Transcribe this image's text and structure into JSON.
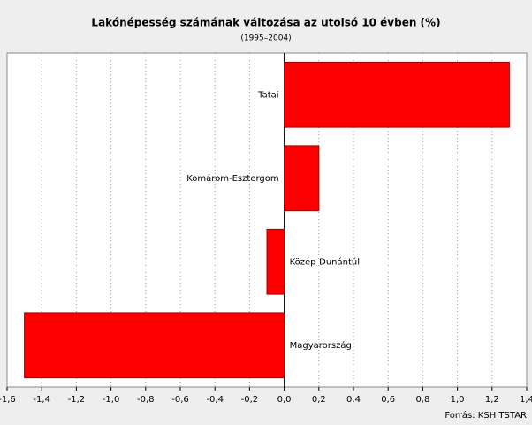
{
  "chart_data": {
    "type": "barh",
    "title": "Lakónépesség számának változása az utolsó 10 évben (%)",
    "subtitle": "(1995–2004)",
    "source": "Forrás: KSH TSTAR",
    "categories": [
      "Tatai",
      "Komárom-Esztergom",
      "Közép-Dunántúl",
      "Magyarország"
    ],
    "values": [
      1.3,
      0.2,
      -0.1,
      -1.5
    ],
    "color": "#ff0000",
    "xlim": [
      -1.6,
      1.4
    ],
    "xticks": [
      {
        "value": -1.6,
        "label": "-1,6"
      },
      {
        "value": -1.4,
        "label": "-1,4"
      },
      {
        "value": -1.2,
        "label": "-1,2"
      },
      {
        "value": -1.0,
        "label": "-1,0"
      },
      {
        "value": -0.8,
        "label": "-0,8"
      },
      {
        "value": -0.6,
        "label": "-0,6"
      },
      {
        "value": -0.4,
        "label": "-0,4"
      },
      {
        "value": -0.2,
        "label": "-0,2"
      },
      {
        "value": 0,
        "label": "0,0"
      },
      {
        "value": 0.2,
        "label": "0,2"
      },
      {
        "value": 0.4,
        "label": "0,4"
      },
      {
        "value": 0.6,
        "label": "0,6"
      },
      {
        "value": 0.8,
        "label": "0,8"
      },
      {
        "value": 1.0,
        "label": "1,0"
      },
      {
        "value": 1.2,
        "label": "1,2"
      },
      {
        "value": 1.4,
        "label": "1,4"
      }
    ],
    "grid": true
  }
}
